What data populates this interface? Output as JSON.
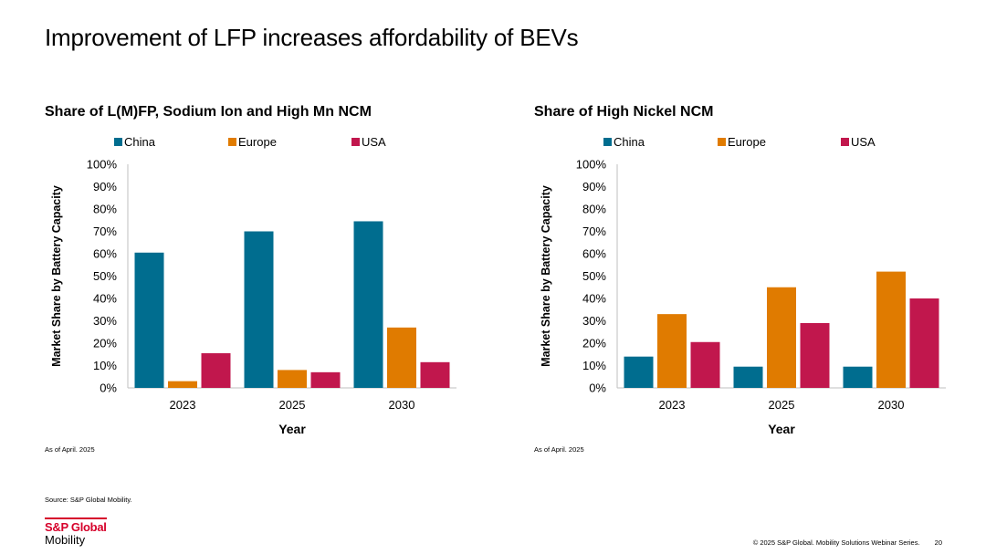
{
  "page": {
    "title": "Improvement of LFP increases affordability of BEVs",
    "source": "Source: S&P Global Mobility.",
    "footer": "© 2025 S&P Global. Mobility Solutions Webinar Series.",
    "page_number": "20",
    "logo": {
      "line1": "S&P Global",
      "line2": "Mobility",
      "brand_color": "#d6002a"
    }
  },
  "chart_data": [
    {
      "type": "bar",
      "title": "Share of L(M)FP, Sodium Ion and High Mn NCM",
      "xlabel": "Year",
      "ylabel": "Market Share by Battery Capacity",
      "note": "As of April. 2025",
      "categories": [
        "2023",
        "2025",
        "2030"
      ],
      "series": [
        {
          "name": "China",
          "color": "#006d8f",
          "values": [
            60.5,
            70,
            74.5
          ]
        },
        {
          "name": "Europe",
          "color": "#e07b00",
          "values": [
            3,
            8,
            27
          ]
        },
        {
          "name": "USA",
          "color": "#c1174d",
          "values": [
            15.5,
            7,
            11.5
          ]
        }
      ],
      "ylim": [
        0,
        100
      ],
      "yticks": [
        "0%",
        "10%",
        "20%",
        "30%",
        "40%",
        "50%",
        "60%",
        "70%",
        "80%",
        "90%",
        "100%"
      ],
      "grid": false,
      "legend": "top"
    },
    {
      "type": "bar",
      "title": "Share of High Nickel NCM",
      "xlabel": "Year",
      "ylabel": "Market Share by Battery Capacity",
      "note": "As of April. 2025",
      "categories": [
        "2023",
        "2025",
        "2030"
      ],
      "series": [
        {
          "name": "China",
          "color": "#006d8f",
          "values": [
            14,
            9.5,
            9.5
          ]
        },
        {
          "name": "Europe",
          "color": "#e07b00",
          "values": [
            33,
            45,
            52
          ]
        },
        {
          "name": "USA",
          "color": "#c1174d",
          "values": [
            20.5,
            29,
            40
          ]
        }
      ],
      "ylim": [
        0,
        100
      ],
      "yticks": [
        "0%",
        "10%",
        "20%",
        "30%",
        "40%",
        "50%",
        "60%",
        "70%",
        "80%",
        "90%",
        "100%"
      ],
      "grid": false,
      "legend": "top"
    }
  ]
}
